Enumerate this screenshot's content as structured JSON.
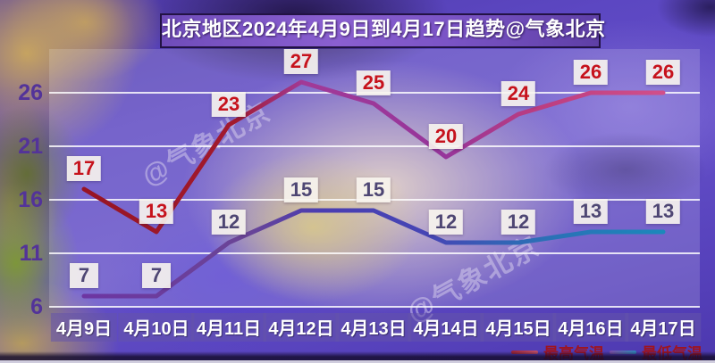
{
  "title": {
    "text": "北京地区2024年4月9日到4月17日趋势@气象北京"
  },
  "watermark": {
    "text": "@气象北京"
  },
  "chart_data": {
    "type": "line",
    "title": "北京地区2024年4月9日到4月17日趋势@气象北京",
    "categories": [
      "4月9日",
      "4月10日",
      "4月11日",
      "4月12日",
      "4月13日",
      "4月14日",
      "4月15日",
      "4月16日",
      "4月17日"
    ],
    "series": [
      {
        "name": "最高气温",
        "values": [
          17,
          13,
          23,
          27,
          25,
          20,
          24,
          26,
          26
        ],
        "label_color": "#c6121c",
        "gradient": [
          [
            0,
            "#971423"
          ],
          [
            0.26,
            "#a21a2e"
          ],
          [
            0.38,
            "#a23a97"
          ],
          [
            0.62,
            "#96359b"
          ],
          [
            0.78,
            "#bb3d80"
          ],
          [
            1,
            "#d14f8a"
          ]
        ]
      },
      {
        "name": "最低气温",
        "values": [
          7,
          7,
          12,
          15,
          15,
          12,
          12,
          13,
          13
        ],
        "label_color": "#4e4673",
        "gradient": [
          [
            0,
            "#6d35a2"
          ],
          [
            0.28,
            "#6a4596"
          ],
          [
            0.41,
            "#4a3db2"
          ],
          [
            0.6,
            "#4546b5"
          ],
          [
            0.75,
            "#2f6ab5"
          ],
          [
            1,
            "#1b88ba"
          ]
        ]
      }
    ],
    "yticks": [
      26,
      21,
      16,
      11,
      6
    ],
    "ylim": [
      6,
      29
    ],
    "xlabel": "",
    "ylabel": "",
    "grid": true,
    "gridline_color": "rgba(255,255,255,0.82)",
    "legend_position": "bottom-right",
    "legend_text_color": "#9e1420"
  }
}
